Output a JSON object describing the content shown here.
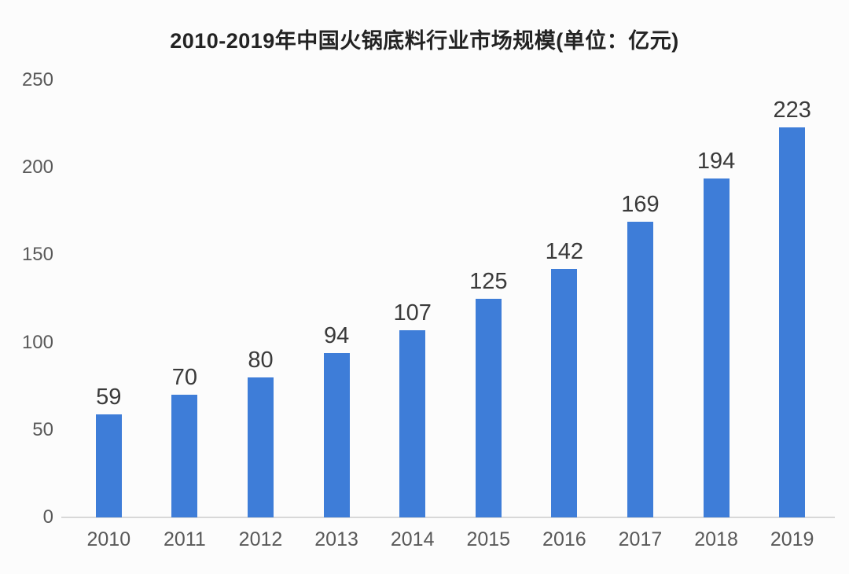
{
  "chart_data": {
    "type": "bar",
    "title": "2010-2019年中国火锅底料行业市场规模(单位：亿元)",
    "categories": [
      "2010",
      "2011",
      "2012",
      "2013",
      "2014",
      "2015",
      "2016",
      "2017",
      "2018",
      "2019"
    ],
    "values": [
      59,
      70,
      80,
      94,
      107,
      125,
      142,
      169,
      194,
      223
    ],
    "xlabel": "",
    "ylabel": "",
    "ylim": [
      0,
      250
    ],
    "yticks": [
      0,
      50,
      100,
      150,
      200,
      250
    ],
    "grid": false,
    "legend": false,
    "data_labels_shown": true,
    "colors": {
      "bar": "#3e7dd8",
      "value_label": "#3a3a3a",
      "axis_text": "#595959",
      "title_text": "#232323",
      "axis_line": "#d8d8d8",
      "background": "#fcfcfc"
    }
  }
}
